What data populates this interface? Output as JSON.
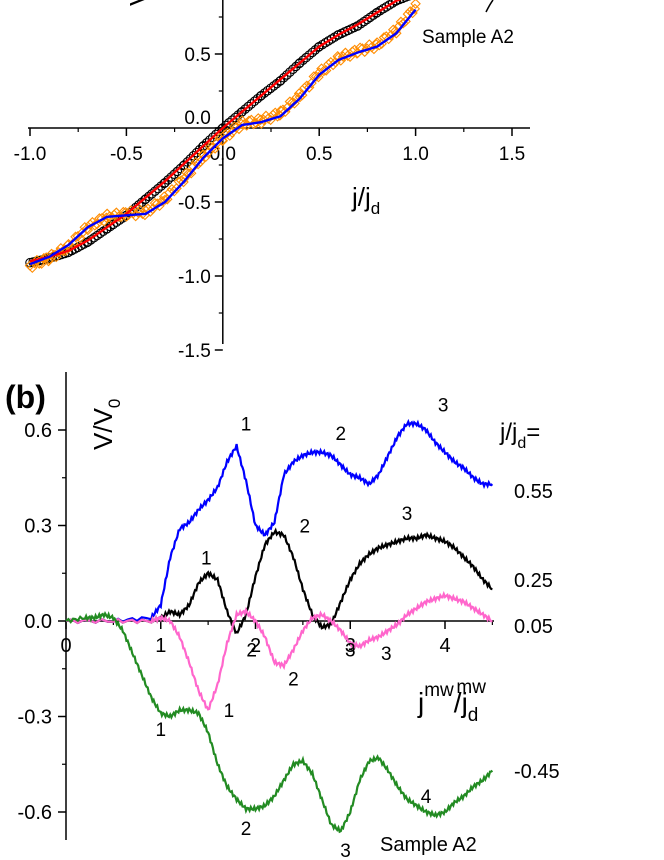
{
  "chart_data": [
    {
      "id": "a",
      "type": "line",
      "title": "",
      "ylabel": "V",
      "xlabel_main": "j/j",
      "xlabel_sub": "d",
      "annotation": "Sample A2",
      "x_ticks": [
        "-1.0",
        "-0.5",
        "0.0",
        "0.5",
        "1.0",
        "1.5"
      ],
      "x_tick_values": [
        -1.0,
        -0.5,
        0.0,
        0.5,
        1.0,
        1.5
      ],
      "y_ticks": [
        "0.5",
        "0.0",
        "-0.5",
        "-1.0",
        "-1.5"
      ],
      "y_tick_values": [
        0.5,
        0.0,
        -0.5,
        -1.0,
        -1.5
      ],
      "xlim": [
        -1.02,
        1.6
      ],
      "ylim": [
        -1.6,
        0.85
      ],
      "colors": {
        "data_circles": "#000000",
        "data_diamonds": "#ff8c00",
        "fit_red": "#ff0000",
        "fit_blue": "#0000ff"
      },
      "series": [
        {
          "style": "circles",
          "x": [
            -1.0,
            -0.9,
            -0.8,
            -0.7,
            -0.6,
            -0.5,
            -0.4,
            -0.3,
            -0.2,
            -0.1,
            0.0,
            0.1,
            0.2,
            0.3,
            0.4,
            0.5,
            0.6,
            0.7,
            0.8,
            0.9,
            1.0
          ],
          "y": [
            -0.91,
            -0.88,
            -0.84,
            -0.77,
            -0.68,
            -0.59,
            -0.48,
            -0.37,
            -0.25,
            -0.12,
            0.0,
            0.11,
            0.22,
            0.32,
            0.44,
            0.55,
            0.63,
            0.69,
            0.78,
            0.86,
            0.91
          ]
        },
        {
          "style": "diamonds",
          "x": [
            -1.0,
            -0.9,
            -0.8,
            -0.7,
            -0.6,
            -0.5,
            -0.4,
            -0.3,
            -0.2,
            -0.1,
            0.0,
            0.1,
            0.2,
            0.3,
            0.4,
            0.5,
            0.6,
            0.7,
            0.8,
            0.9,
            1.0
          ],
          "y": [
            -0.93,
            -0.88,
            -0.8,
            -0.67,
            -0.6,
            -0.58,
            -0.57,
            -0.48,
            -0.34,
            -0.19,
            -0.07,
            0.03,
            0.05,
            0.1,
            0.22,
            0.37,
            0.47,
            0.52,
            0.56,
            0.66,
            0.82
          ]
        },
        {
          "style": "line-red",
          "x": [
            -1.0,
            -0.9,
            -0.8,
            -0.7,
            -0.6,
            -0.5,
            -0.4,
            -0.3,
            -0.2,
            -0.1,
            0.0,
            0.1,
            0.2,
            0.3,
            0.4,
            0.5,
            0.6,
            0.7,
            0.8,
            0.9,
            1.0
          ],
          "y": [
            -0.9,
            -0.87,
            -0.83,
            -0.76,
            -0.67,
            -0.58,
            -0.47,
            -0.36,
            -0.24,
            -0.12,
            0.0,
            0.11,
            0.22,
            0.33,
            0.44,
            0.55,
            0.63,
            0.7,
            0.78,
            0.86,
            0.91
          ]
        },
        {
          "style": "line-blue",
          "x": [
            -1.0,
            -0.9,
            -0.8,
            -0.7,
            -0.6,
            -0.5,
            -0.4,
            -0.3,
            -0.2,
            -0.1,
            0.0,
            0.1,
            0.2,
            0.3,
            0.4,
            0.5,
            0.6,
            0.7,
            0.8,
            0.9,
            1.0
          ],
          "y": [
            -0.92,
            -0.87,
            -0.79,
            -0.67,
            -0.6,
            -0.59,
            -0.58,
            -0.5,
            -0.36,
            -0.2,
            -0.07,
            0.02,
            0.04,
            0.08,
            0.2,
            0.36,
            0.46,
            0.51,
            0.55,
            0.64,
            0.8
          ]
        }
      ]
    },
    {
      "id": "b",
      "type": "line",
      "panel_label": "(b)",
      "title": "",
      "ylabel_main": "V/V",
      "ylabel_sub": "0",
      "xlabel_main": "j",
      "xlabel_sup1": "mw",
      "xlabel_mid": "/j",
      "xlabel_sub": "d",
      "xlabel_sup2": "mw",
      "legend_title_main": "j/j",
      "legend_title_sub": "d",
      "legend_title_tail": "=",
      "annotation": "Sample A2",
      "x_ticks": [
        "0",
        "1",
        "2",
        "3",
        "4"
      ],
      "x_tick_values": [
        0,
        1,
        2,
        3,
        4
      ],
      "y_ticks": [
        "0.6",
        "0.3",
        "0.0",
        "-0.3",
        "-0.6"
      ],
      "y_tick_values": [
        0.6,
        0.3,
        0.0,
        -0.3,
        -0.6
      ],
      "xlim": [
        0,
        4.6
      ],
      "ylim": [
        -0.7,
        0.72
      ],
      "series": [
        {
          "name": "0.55",
          "color": "#0000ff",
          "x": [
            0,
            0.5,
            0.9,
            1.0,
            1.1,
            1.2,
            1.3,
            1.4,
            1.5,
            1.6,
            1.7,
            1.8,
            1.9,
            2.0,
            2.1,
            2.2,
            2.3,
            2.4,
            2.5,
            2.6,
            2.7,
            2.8,
            2.9,
            3.0,
            3.1,
            3.2,
            3.3,
            3.4,
            3.5,
            3.6,
            3.7,
            3.8,
            3.9,
            4.0,
            4.1,
            4.2,
            4.3,
            4.4,
            4.5
          ],
          "y": [
            0,
            0,
            0.01,
            0.05,
            0.2,
            0.29,
            0.31,
            0.35,
            0.38,
            0.42,
            0.5,
            0.55,
            0.44,
            0.3,
            0.27,
            0.31,
            0.46,
            0.5,
            0.52,
            0.53,
            0.53,
            0.52,
            0.49,
            0.46,
            0.45,
            0.43,
            0.46,
            0.52,
            0.58,
            0.62,
            0.62,
            0.6,
            0.56,
            0.53,
            0.5,
            0.48,
            0.45,
            0.43,
            0.43
          ]
        },
        {
          "name": "0.25",
          "color": "#000000",
          "x": [
            0,
            0.5,
            0.9,
            1.0,
            1.1,
            1.2,
            1.3,
            1.4,
            1.5,
            1.6,
            1.7,
            1.8,
            1.9,
            2.0,
            2.1,
            2.2,
            2.3,
            2.4,
            2.5,
            2.6,
            2.7,
            2.8,
            2.9,
            3.0,
            3.1,
            3.2,
            3.3,
            3.4,
            3.5,
            3.6,
            3.7,
            3.8,
            3.9,
            4.0,
            4.1,
            4.2,
            4.3,
            4.4,
            4.5
          ],
          "y": [
            0,
            0,
            0,
            0.01,
            0.03,
            0.02,
            0.05,
            0.12,
            0.15,
            0.13,
            0.03,
            -0.04,
            0.02,
            0.14,
            0.24,
            0.28,
            0.27,
            0.2,
            0.1,
            0.02,
            -0.02,
            -0.01,
            0.06,
            0.13,
            0.18,
            0.21,
            0.23,
            0.24,
            0.25,
            0.26,
            0.26,
            0.27,
            0.26,
            0.25,
            0.23,
            0.2,
            0.17,
            0.13,
            0.1
          ]
        },
        {
          "name": "0.05",
          "color": "#ff66cc",
          "x": [
            0,
            0.5,
            0.9,
            1.0,
            1.1,
            1.2,
            1.3,
            1.4,
            1.5,
            1.6,
            1.7,
            1.8,
            1.9,
            2.0,
            2.1,
            2.2,
            2.3,
            2.4,
            2.5,
            2.6,
            2.7,
            2.8,
            2.9,
            3.0,
            3.1,
            3.2,
            3.3,
            3.4,
            3.5,
            3.6,
            3.7,
            3.8,
            3.9,
            4.0,
            4.1,
            4.2,
            4.3,
            4.4,
            4.5
          ],
          "y": [
            0,
            0,
            0,
            0.01,
            0,
            -0.05,
            -0.13,
            -0.22,
            -0.28,
            -0.2,
            -0.07,
            0.02,
            0.03,
            0,
            -0.05,
            -0.13,
            -0.14,
            -0.09,
            -0.03,
            0.01,
            0.02,
            0,
            -0.03,
            -0.07,
            -0.08,
            -0.06,
            -0.05,
            -0.03,
            -0.01,
            0.02,
            0.04,
            0.06,
            0.07,
            0.08,
            0.07,
            0.06,
            0.04,
            0.02,
            0
          ]
        },
        {
          "name": "-0.45",
          "color": "#228b22",
          "x": [
            0,
            0.2,
            0.3,
            0.4,
            0.5,
            0.6,
            0.7,
            0.8,
            0.9,
            1.0,
            1.1,
            1.2,
            1.3,
            1.4,
            1.5,
            1.6,
            1.7,
            1.8,
            1.9,
            2.0,
            2.1,
            2.2,
            2.3,
            2.4,
            2.5,
            2.6,
            2.7,
            2.8,
            2.9,
            3.0,
            3.1,
            3.2,
            3.3,
            3.4,
            3.5,
            3.6,
            3.7,
            3.8,
            3.9,
            4.0,
            4.1,
            4.2,
            4.3,
            4.4,
            4.5
          ],
          "y": [
            0,
            0.01,
            0.01,
            0.02,
            0.01,
            -0.03,
            -0.1,
            -0.17,
            -0.24,
            -0.29,
            -0.3,
            -0.28,
            -0.28,
            -0.29,
            -0.35,
            -0.45,
            -0.52,
            -0.56,
            -0.59,
            -0.59,
            -0.58,
            -0.55,
            -0.5,
            -0.45,
            -0.44,
            -0.48,
            -0.56,
            -0.64,
            -0.66,
            -0.6,
            -0.5,
            -0.44,
            -0.43,
            -0.47,
            -0.52,
            -0.56,
            -0.58,
            -0.6,
            -0.61,
            -0.6,
            -0.57,
            -0.55,
            -0.52,
            -0.5,
            -0.47
          ]
        }
      ],
      "peak_labels": [
        {
          "series": "0.55",
          "text": "1",
          "x": 1.9,
          "y": 0.62
        },
        {
          "series": "0.55",
          "text": "2",
          "x": 2.9,
          "y": 0.59
        },
        {
          "series": "0.55",
          "text": "3",
          "x": 3.98,
          "y": 0.68
        },
        {
          "series": "0.25",
          "text": "1",
          "x": 1.48,
          "y": 0.2
        },
        {
          "series": "0.25",
          "text": "2",
          "x": 2.52,
          "y": 0.3
        },
        {
          "series": "0.25",
          "text": "3",
          "x": 3.6,
          "y": 0.34
        },
        {
          "series": "0.25",
          "text": "2",
          "x": 1.96,
          "y": -0.09
        },
        {
          "series": "0.25",
          "text": "3",
          "x": 3.0,
          "y": -0.09
        },
        {
          "series": "0.05",
          "text": "1",
          "x": 1.72,
          "y": -0.28
        },
        {
          "series": "0.05",
          "text": "2",
          "x": 2.4,
          "y": -0.18
        },
        {
          "series": "0.05",
          "text": "3",
          "x": 3.38,
          "y": -0.1
        },
        {
          "series": "-0.45",
          "text": "1",
          "x": 1.0,
          "y": -0.34
        },
        {
          "series": "-0.45",
          "text": "2",
          "x": 1.9,
          "y": -0.65
        },
        {
          "series": "-0.45",
          "text": "3",
          "x": 2.95,
          "y": -0.72
        },
        {
          "series": "-0.45",
          "text": "4",
          "x": 3.8,
          "y": -0.55
        }
      ]
    }
  ]
}
